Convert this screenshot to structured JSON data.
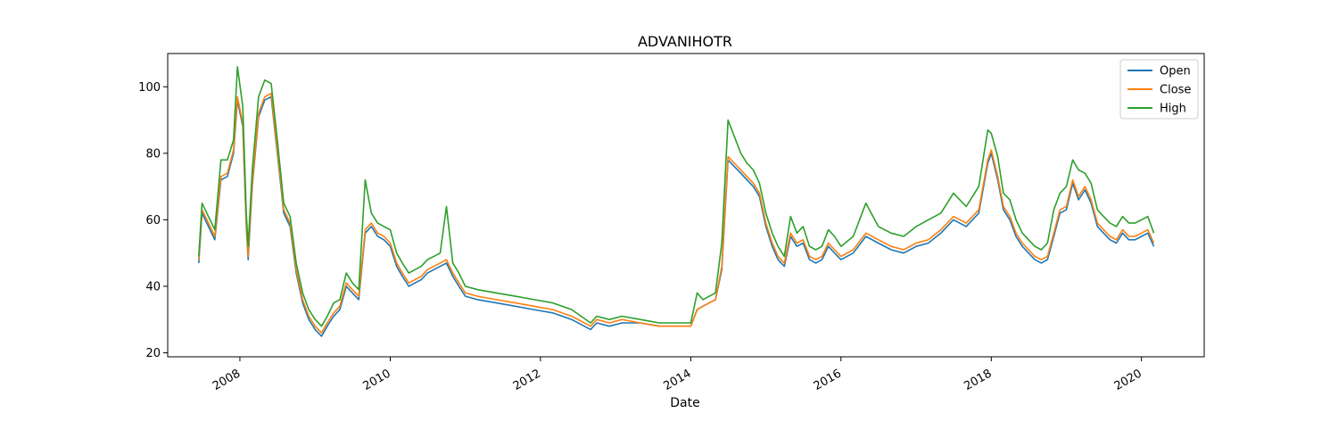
{
  "chart_data": {
    "type": "line",
    "title": "ADVANIHOTR",
    "xlabel": "Date",
    "ylabel": "",
    "xlim": [
      "2007-01-15",
      "2020-11-01"
    ],
    "ylim": [
      18.8,
      110.0
    ],
    "grid": false,
    "legend_position": "top-right",
    "x_ticks": [
      "2008",
      "2010",
      "2012",
      "2014",
      "2016",
      "2018",
      "2020"
    ],
    "y_ticks": [
      20,
      40,
      60,
      80,
      100
    ],
    "colors": {
      "Open": "#1f77b4",
      "Close": "#ff7f0e",
      "High": "#2ca02c"
    },
    "x": [
      "2007-06-15",
      "2007-07-01",
      "2007-08-01",
      "2007-09-01",
      "2007-10-01",
      "2007-11-01",
      "2007-12-01",
      "2007-12-20",
      "2008-01-15",
      "2008-02-01",
      "2008-02-10",
      "2008-03-01",
      "2008-04-01",
      "2008-05-01",
      "2008-06-01",
      "2008-07-01",
      "2008-08-01",
      "2008-09-01",
      "2008-10-01",
      "2008-11-01",
      "2008-12-01",
      "2009-01-01",
      "2009-02-01",
      "2009-03-01",
      "2009-04-01",
      "2009-05-01",
      "2009-06-01",
      "2009-07-01",
      "2009-08-01",
      "2009-09-01",
      "2009-10-01",
      "2009-11-01",
      "2009-12-01",
      "2010-01-01",
      "2010-02-01",
      "2010-03-01",
      "2010-04-01",
      "2010-05-01",
      "2010-06-01",
      "2010-07-01",
      "2010-08-01",
      "2010-09-01",
      "2010-10-01",
      "2010-11-01",
      "2010-12-01",
      "2011-01-01",
      "2011-03-01",
      "2011-06-01",
      "2011-09-01",
      "2011-12-01",
      "2012-03-01",
      "2012-06-01",
      "2012-09-01",
      "2012-10-01",
      "2012-12-01",
      "2013-02-01",
      "2013-05-01",
      "2013-08-01",
      "2013-11-01",
      "2014-01-01",
      "2014-02-01",
      "2014-03-01",
      "2014-04-01",
      "2014-05-01",
      "2014-06-01",
      "2014-07-01",
      "2014-08-01",
      "2014-09-01",
      "2014-10-01",
      "2014-11-01",
      "2014-12-01",
      "2015-01-01",
      "2015-02-01",
      "2015-03-01",
      "2015-04-01",
      "2015-05-01",
      "2015-06-01",
      "2015-07-01",
      "2015-08-01",
      "2015-09-01",
      "2015-10-01",
      "2015-11-01",
      "2015-12-01",
      "2016-01-01",
      "2016-03-01",
      "2016-05-01",
      "2016-07-01",
      "2016-09-01",
      "2016-11-01",
      "2017-01-01",
      "2017-03-01",
      "2017-05-01",
      "2017-07-01",
      "2017-09-01",
      "2017-11-01",
      "2017-12-15",
      "2018-01-01",
      "2018-02-01",
      "2018-03-01",
      "2018-04-01",
      "2018-05-01",
      "2018-06-01",
      "2018-07-01",
      "2018-08-01",
      "2018-09-01",
      "2018-10-01",
      "2018-11-01",
      "2018-12-01",
      "2019-01-01",
      "2019-02-01",
      "2019-03-01",
      "2019-04-01",
      "2019-05-01",
      "2019-06-01",
      "2019-07-01",
      "2019-08-01",
      "2019-09-01",
      "2019-10-01",
      "2019-11-01",
      "2019-12-01",
      "2020-01-01",
      "2020-02-01",
      "2020-03-01"
    ],
    "series": [
      {
        "name": "Open",
        "values": [
          47,
          62,
          58,
          54,
          72,
          73,
          80,
          96,
          88,
          58,
          48,
          70,
          91,
          96,
          97,
          80,
          62,
          58,
          44,
          35,
          30,
          27,
          25,
          28,
          31,
          33,
          40,
          38,
          36,
          56,
          58,
          55,
          54,
          52,
          46,
          43,
          40,
          41,
          42,
          44,
          45,
          46,
          47,
          43,
          40,
          37,
          36,
          35,
          34,
          33,
          32,
          30,
          27,
          29,
          28,
          29,
          29,
          28,
          28,
          28,
          33,
          34,
          35,
          36,
          45,
          78,
          76,
          74,
          72,
          70,
          67,
          58,
          52,
          48,
          46,
          55,
          52,
          53,
          48,
          47,
          48,
          52,
          50,
          48,
          50,
          55,
          53,
          51,
          50,
          52,
          53,
          56,
          60,
          58,
          62,
          77,
          80,
          72,
          63,
          60,
          55,
          52,
          50,
          48,
          47,
          48,
          55,
          62,
          63,
          71,
          66,
          69,
          65,
          58,
          56,
          54,
          53,
          56,
          54,
          54,
          55,
          56,
          52
        ]
      },
      {
        "name": "Close",
        "values": [
          48,
          63,
          59,
          55,
          73,
          74,
          81,
          97,
          89,
          59,
          49,
          71,
          92,
          97,
          98,
          81,
          63,
          59,
          45,
          36,
          31,
          28,
          26,
          29,
          32,
          34,
          41,
          39,
          37,
          57,
          59,
          56,
          55,
          53,
          47,
          44,
          41,
          42,
          43,
          45,
          46,
          47,
          48,
          44,
          41,
          38,
          37,
          36,
          35,
          34,
          33,
          31,
          28,
          30,
          29,
          30,
          29,
          28,
          28,
          28,
          33,
          34,
          35,
          36,
          46,
          79,
          77,
          75,
          73,
          71,
          68,
          59,
          53,
          49,
          47,
          56,
          53,
          54,
          49,
          48,
          49,
          53,
          51,
          49,
          51,
          56,
          54,
          52,
          51,
          53,
          54,
          57,
          61,
          59,
          63,
          78,
          81,
          73,
          64,
          61,
          56,
          53,
          51,
          49,
          48,
          49,
          56,
          63,
          64,
          72,
          67,
          70,
          66,
          59,
          57,
          55,
          54,
          57,
          55,
          55,
          56,
          57,
          53
        ]
      },
      {
        "name": "High",
        "values": [
          49,
          65,
          61,
          57,
          78,
          78,
          84,
          106,
          94,
          62,
          52,
          75,
          97,
          102,
          101,
          84,
          65,
          61,
          47,
          38,
          33,
          30,
          28,
          31,
          35,
          36,
          44,
          41,
          39,
          72,
          62,
          59,
          58,
          57,
          50,
          47,
          44,
          45,
          46,
          48,
          49,
          50,
          64,
          47,
          44,
          40,
          39,
          38,
          37,
          36,
          35,
          33,
          29,
          31,
          30,
          31,
          30,
          29,
          29,
          29,
          38,
          36,
          37,
          38,
          53,
          90,
          85,
          80,
          77,
          75,
          71,
          62,
          56,
          52,
          49,
          61,
          56,
          58,
          52,
          51,
          52,
          57,
          55,
          52,
          55,
          65,
          58,
          56,
          55,
          58,
          60,
          62,
          68,
          64,
          70,
          87,
          86,
          79,
          68,
          66,
          60,
          56,
          54,
          52,
          51,
          53,
          63,
          68,
          70,
          78,
          75,
          74,
          71,
          63,
          61,
          59,
          58,
          61,
          59,
          59,
          60,
          61,
          56
        ]
      }
    ]
  }
}
